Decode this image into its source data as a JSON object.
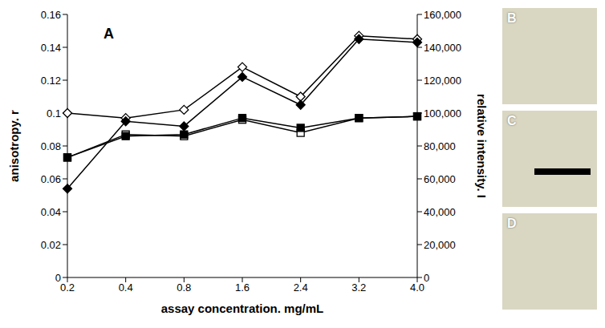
{
  "chart_data": {
    "type": "line",
    "annotations": [
      "A"
    ],
    "x_label": "assay concentration. mg/mL",
    "y_label": "anisotropy. r",
    "y2_label": "relative intensity. I",
    "categories": [
      "0.2",
      "0.4",
      "0.8",
      "1.6",
      "2.4",
      "3.2",
      "4.0"
    ],
    "ylim": [
      0,
      0.16
    ],
    "yticks": [
      0,
      0.02,
      0.04,
      0.06,
      0.08,
      0.1,
      0.12,
      0.14,
      0.16
    ],
    "y2lim": [
      0,
      160000
    ],
    "y2ticks": [
      0,
      {
        "value": 20000,
        "label": "20,000"
      },
      {
        "value": 40000,
        "label": "40,000"
      },
      {
        "value": 60000,
        "label": "60,000"
      },
      {
        "value": 80000,
        "label": "80,000"
      },
      {
        "value": 100000,
        "label": "100,000"
      },
      {
        "value": 120000,
        "label": "120,000"
      },
      {
        "value": 140000,
        "label": "140,000"
      },
      {
        "value": 160000,
        "label": "160,000"
      }
    ],
    "grid": false,
    "series": [
      {
        "color": "#000000",
        "marker": "open_square",
        "values": [
          0.073,
          0.087,
          0.086,
          0.096,
          0.088,
          0.097,
          0.098
        ]
      },
      {
        "color": "#000000",
        "marker": "square",
        "values": [
          0.073,
          0.086,
          0.087,
          0.097,
          0.091,
          0.097,
          0.098
        ]
      },
      {
        "color": "#000000",
        "marker": "open_diamond",
        "axis": "y2",
        "values": [
          100000,
          97000,
          102000,
          128000,
          110000,
          147000,
          145000
        ]
      },
      {
        "color": "#000000",
        "marker": "diamond",
        "axis": "y2",
        "values": [
          54000,
          95000,
          92000,
          122000,
          105000,
          145000,
          143000
        ]
      }
    ]
  },
  "panels": [
    {
      "label": "B"
    },
    {
      "label": "C"
    },
    {
      "label": "D"
    }
  ]
}
